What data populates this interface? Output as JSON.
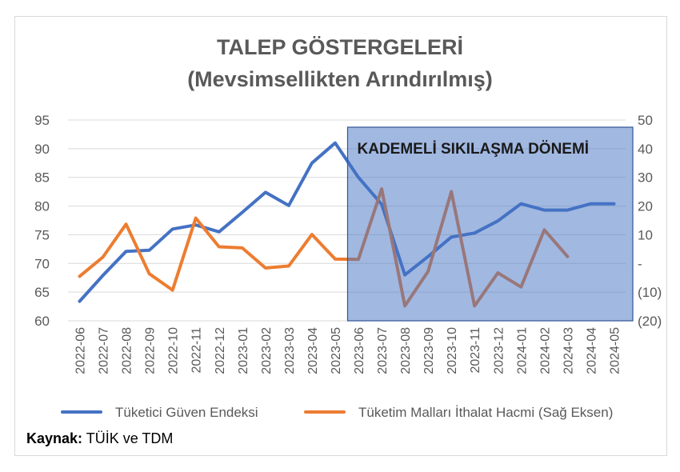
{
  "chart_data": {
    "type": "line",
    "title": "TALEP GÖSTERGELERİ",
    "subtitle": "(Mevsimsellikten Arındırılmış)",
    "categories": [
      "2022-06",
      "2022-07",
      "2022-08",
      "2022-09",
      "2022-10",
      "2022-11",
      "2022-12",
      "2023-01",
      "2023-02",
      "2023-03",
      "2023-04",
      "2023-05",
      "2023-06",
      "2023-07",
      "2023-08",
      "2023-09",
      "2023-10",
      "2023-11",
      "2023-12",
      "2024-01",
      "2024-02",
      "2024-03",
      "2024-04",
      "2024-05"
    ],
    "series": [
      {
        "name": "Tüketici Güven Endeksi",
        "axis": "left",
        "color": "#4472C4",
        "values": [
          63.4,
          67.9,
          72.1,
          72.3,
          76.0,
          76.7,
          75.5,
          78.9,
          82.4,
          80.1,
          87.5,
          91.0,
          85.0,
          80.3,
          68.0,
          71.2,
          74.6,
          75.3,
          77.4,
          80.4,
          79.3,
          79.3,
          80.4,
          80.4
        ]
      },
      {
        "name": "Tüketim Malları İthalat Hacmi  (Sağ Eksen)",
        "axis": "right",
        "color": "#ED7D31",
        "values": [
          -4.5,
          2.2,
          13.7,
          -3.6,
          -9.3,
          15.8,
          5.8,
          5.4,
          -1.6,
          -0.9,
          10.1,
          1.5,
          1.4,
          26.0,
          -14.8,
          -2.8,
          25.0,
          -14.8,
          -3.3,
          -8.2,
          11.7,
          2.4,
          null,
          null
        ]
      }
    ],
    "y_left": {
      "min": 60,
      "max": 95,
      "ticks": [
        60,
        65,
        70,
        75,
        80,
        85,
        90,
        95
      ],
      "tick_labels": [
        "60",
        "65",
        "70",
        "75",
        "80",
        "85",
        "90",
        "95"
      ]
    },
    "y_right": {
      "min": -20,
      "max": 50,
      "ticks": [
        -20,
        -10,
        0,
        10,
        20,
        30,
        40,
        50
      ],
      "tick_labels": [
        "(20)",
        "(10)",
        "-",
        "10",
        "20",
        "30",
        "40",
        "50"
      ]
    },
    "grid": true,
    "legend_position": "bottom",
    "shaded_region": {
      "label": "KADEMELİ SIKILAŞMA DÖNEMİ",
      "start": "2023-06",
      "end": "2024-05",
      "color": "#4472C4"
    }
  },
  "source": {
    "label": "Kaynak:",
    "text": " TÜİK ve TDM"
  }
}
